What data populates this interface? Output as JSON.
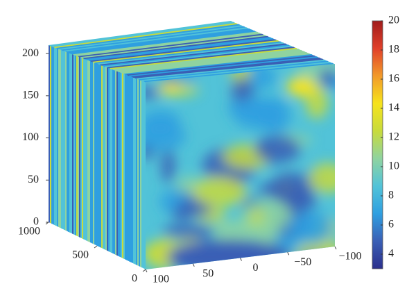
{
  "chart_data": {
    "type": "slice",
    "xlim": [
      1000,
      0
    ],
    "xticks": [
      0,
      500,
      1000
    ],
    "ylim": [
      100,
      -100
    ],
    "yticks": [
      100,
      50,
      0,
      {
        "value": -50,
        "label": "−50"
      },
      {
        "value": -100,
        "label": "−100"
      }
    ],
    "zlim": [
      0,
      210
    ],
    "zticks": [
      0,
      50,
      100,
      150,
      200
    ],
    "colorbar": {
      "clim": [
        3,
        20
      ],
      "ticks": [
        4,
        6,
        8,
        10,
        12,
        14,
        16,
        18,
        20
      ],
      "colors": [
        "#2b2f8c",
        "#3a5fb5",
        "#2f9fe0",
        "#52c3d8",
        "#8fd3a0",
        "#c8db3c",
        "#f6e31c",
        "#f29a2a",
        "#e0402a",
        "#a01c1c"
      ]
    }
  }
}
